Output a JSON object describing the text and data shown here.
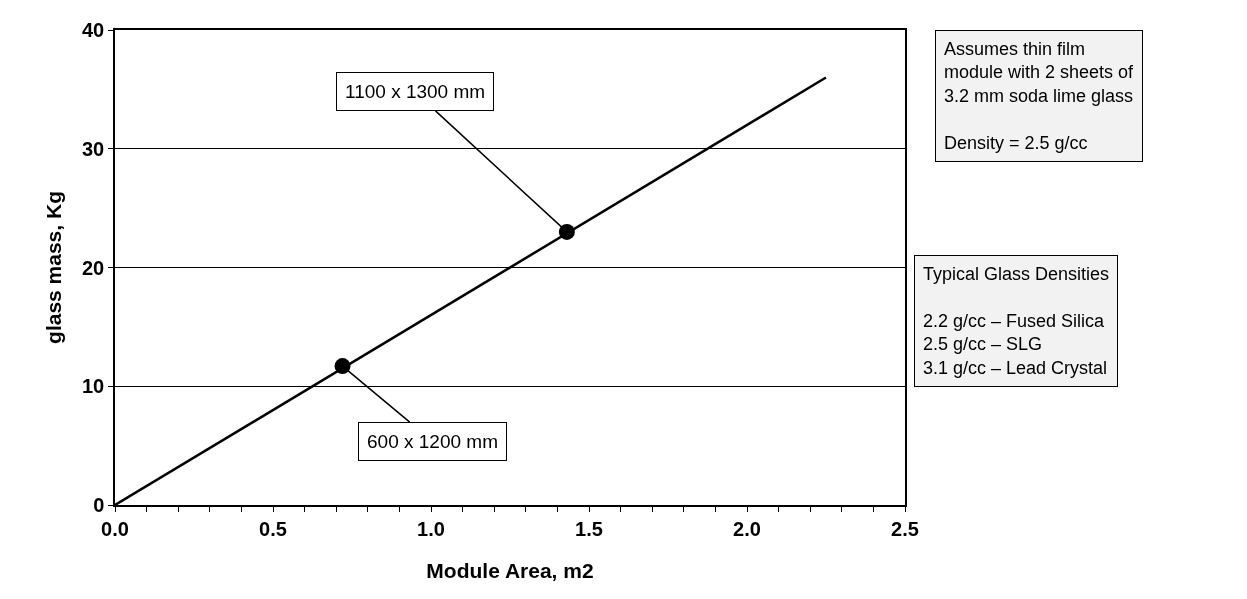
{
  "chart_data": {
    "type": "line",
    "xlabel": "Module Area, m2",
    "ylabel": "glass mass, Kg",
    "series": [
      {
        "color": "#000000",
        "x": [
          0,
          2.25
        ],
        "values": [
          0,
          36
        ],
        "marker": "none",
        "line_style": "solid"
      },
      {
        "type": "scatter",
        "color": "#000000",
        "x": [
          0.72,
          1.43
        ],
        "values": [
          11.7,
          23
        ],
        "marker": "circle"
      }
    ],
    "xlim": [
      0,
      2.5
    ],
    "xticks": [
      {
        "value": 0,
        "label": "0.0"
      },
      {
        "value": 0.5,
        "label": "0.5"
      },
      {
        "value": 1,
        "label": "1.0"
      },
      {
        "value": 1.5,
        "label": "1.5"
      },
      {
        "value": 2,
        "label": "2.0"
      },
      {
        "value": 2.5,
        "label": "2.5"
      }
    ],
    "ylim": [
      0,
      40
    ],
    "yticks": [
      0,
      10,
      20,
      30,
      40
    ],
    "grid": "y",
    "legend": false,
    "annotations": [
      {
        "text": "1100 x 1300 mm",
        "x": 1.43,
        "y": 23
      },
      {
        "text": "600 x 1200 mm",
        "x": 0.72,
        "y": 11.7
      },
      "Assumes thin film\nmodule with 2 sheets of\n3.2 mm soda lime glass\n\nDensity = 2.5 g/cc",
      "Typical Glass Densities\n\n2.2 g/cc – Fused Silica\n2.5 g/cc – SLG\n3.1 g/cc – Lead Crystal"
    ]
  }
}
